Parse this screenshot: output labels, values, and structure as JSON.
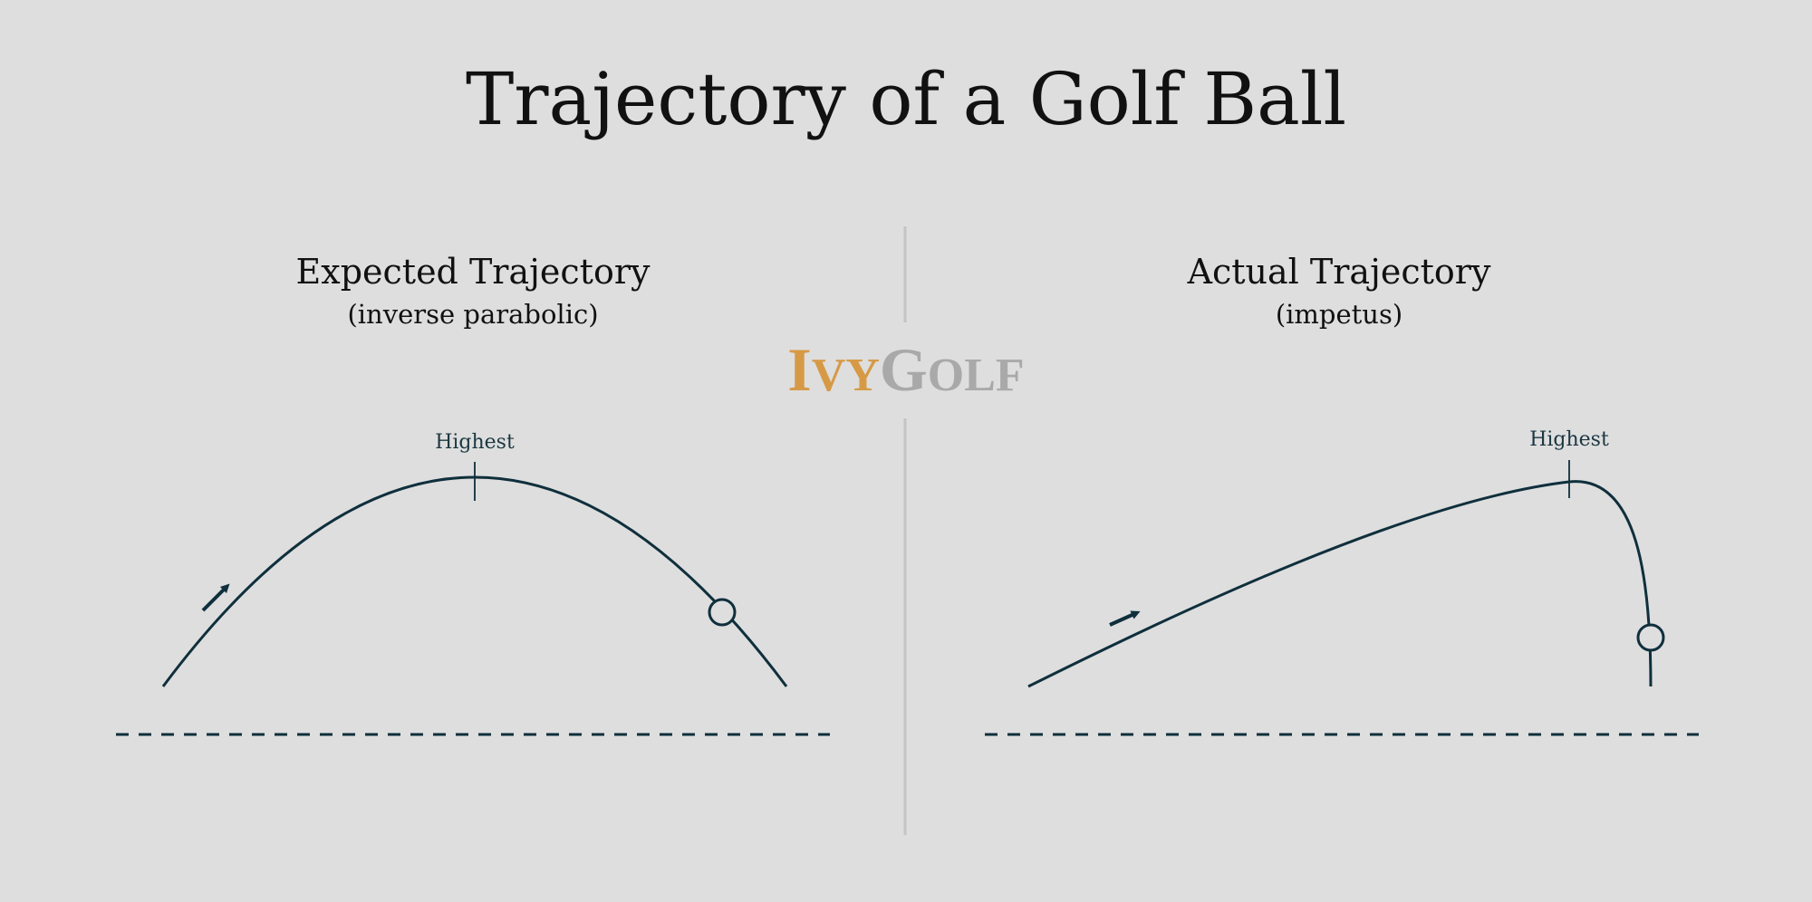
{
  "title": "Trajectory of a Golf Ball",
  "panels": [
    {
      "title": "Expected Trajectory",
      "subtitle": "(inverse parabolic)",
      "marker_label": "Highest"
    },
    {
      "title": "Actual Trajectory",
      "subtitle": "(impetus)",
      "marker_label": "Highest"
    }
  ],
  "logo": {
    "part1_initial": "I",
    "part1_rest": "VY",
    "part2_initial": "G",
    "part2_rest": "OLF"
  },
  "colors": {
    "background": "#dedede",
    "line": "#0f2f3c",
    "divider": "#c4c4c4",
    "logo_accent": "#d69a47",
    "logo_gray": "#a9a9a9"
  }
}
